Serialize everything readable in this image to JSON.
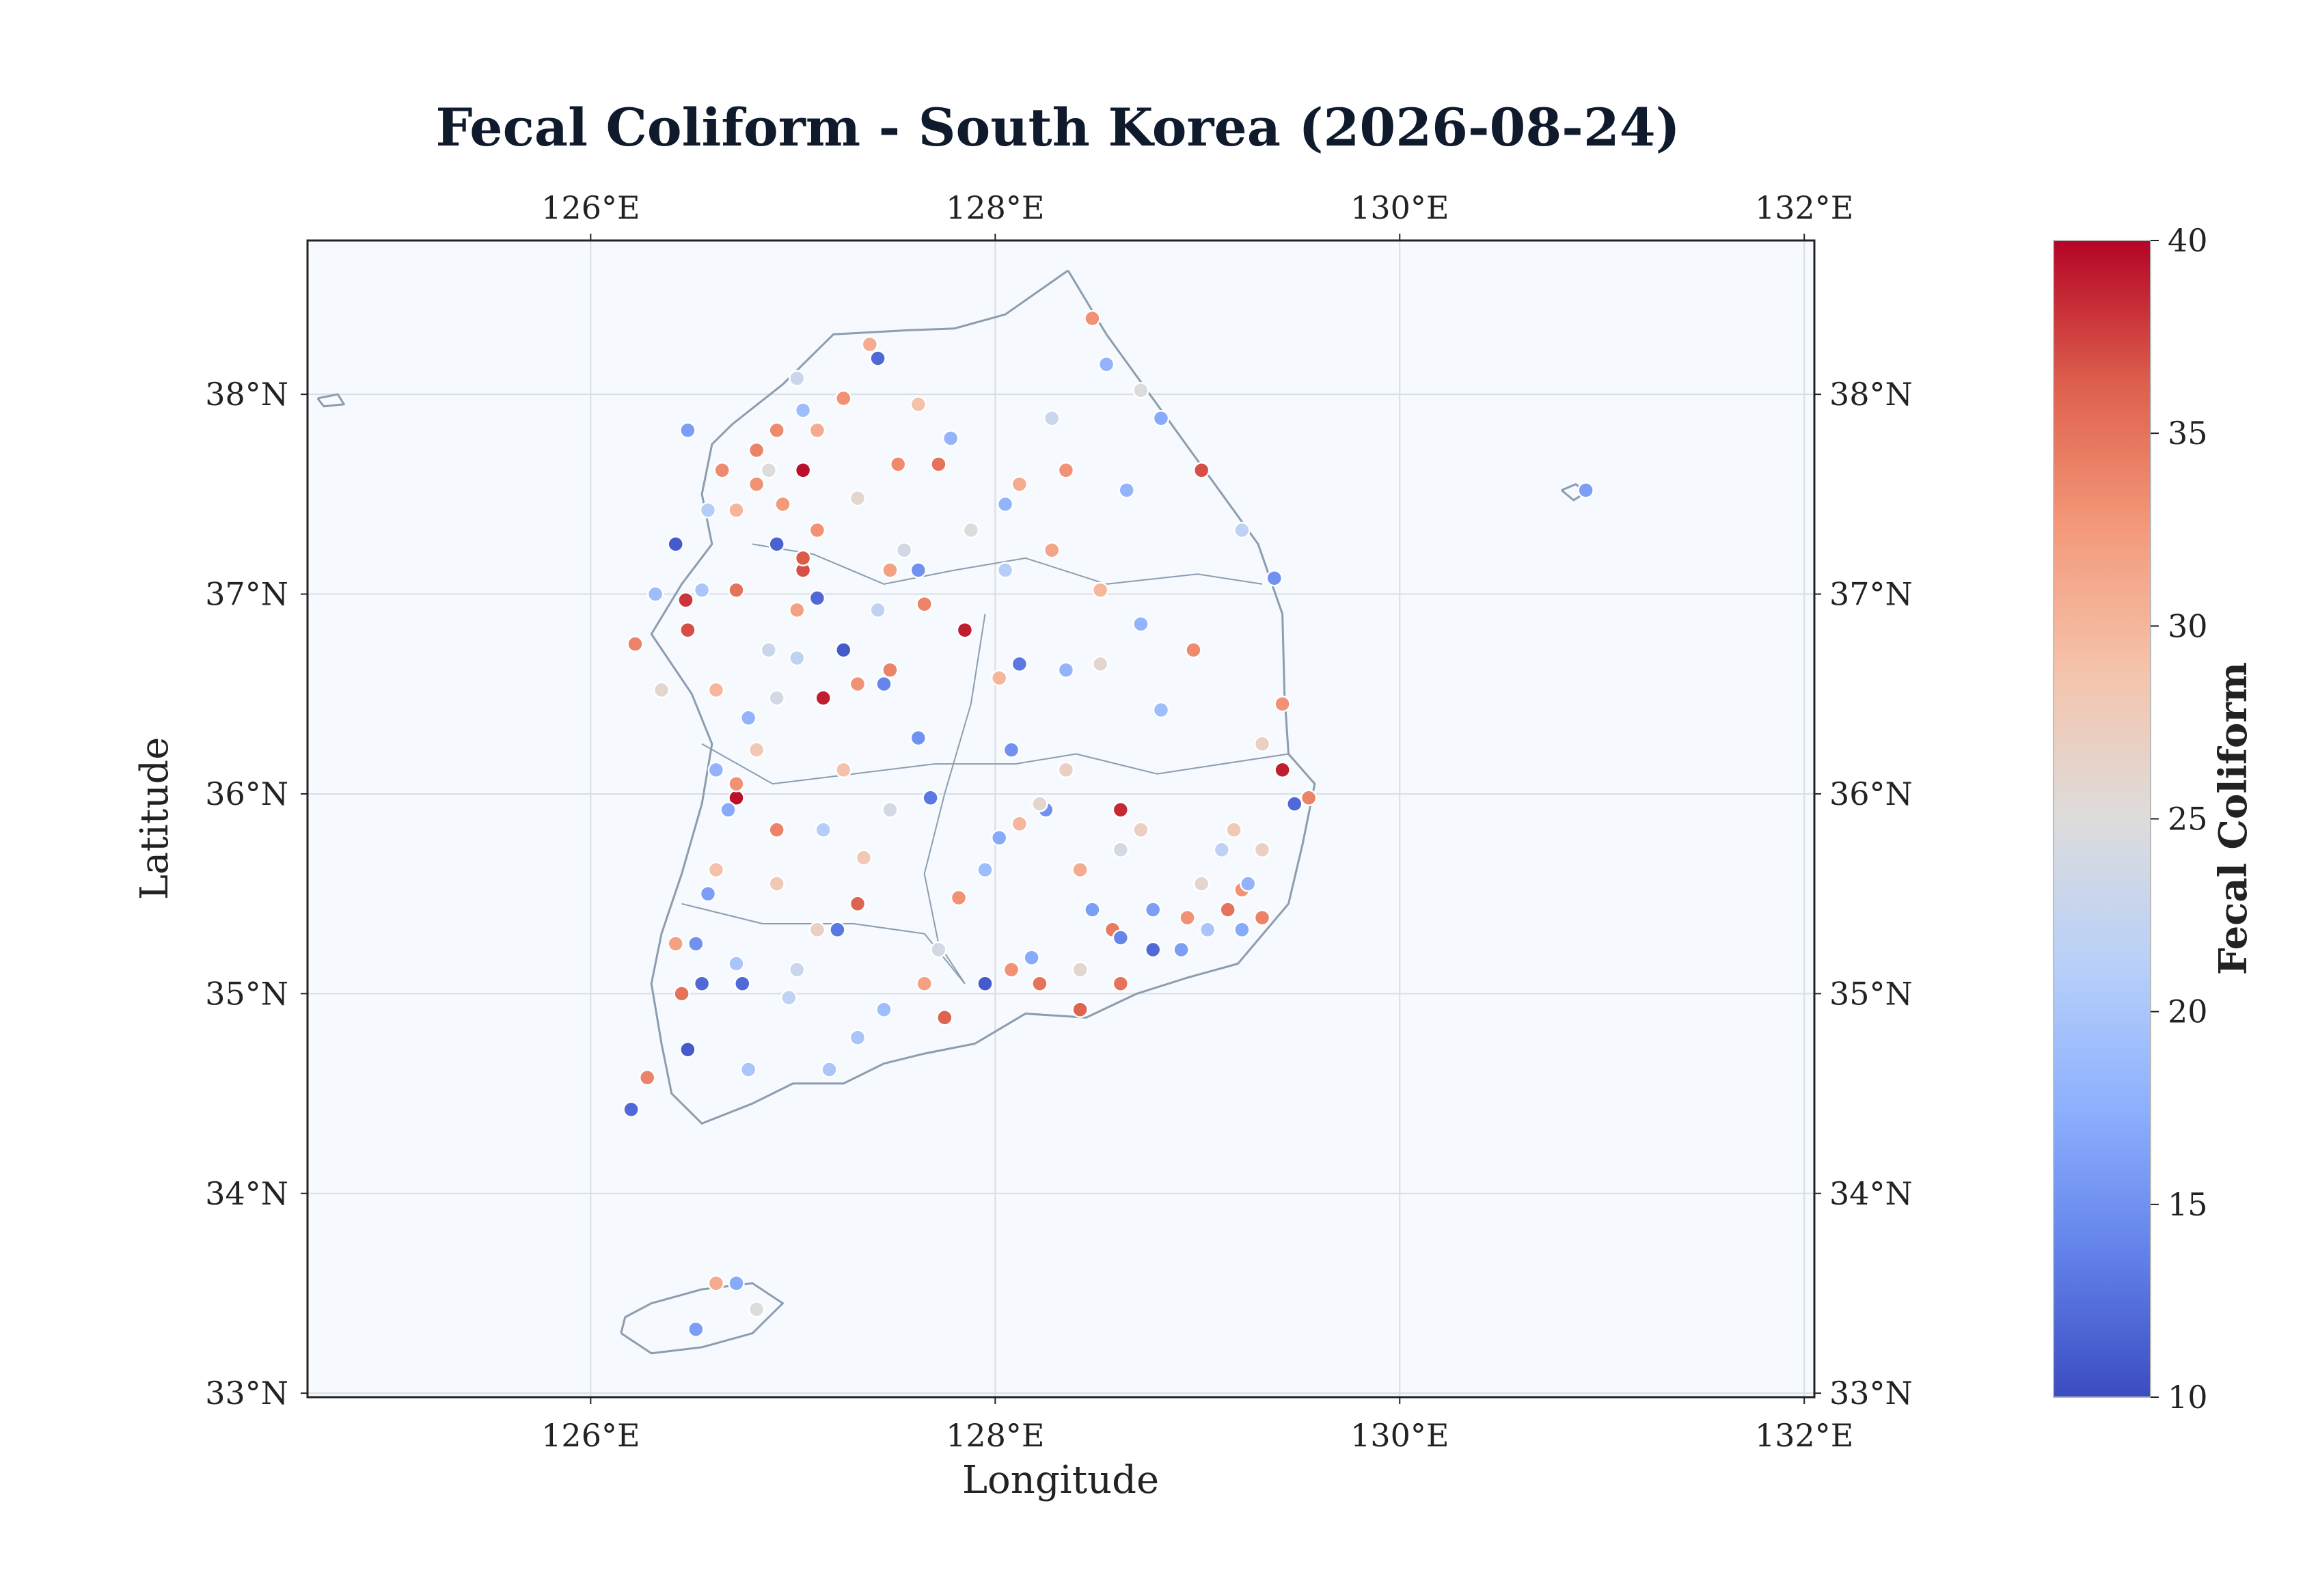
{
  "chart_data": {
    "type": "scatter",
    "title": "Fecal Coliform - South Korea (2026-08-24)",
    "xlabel": "Longitude",
    "ylabel": "Latitude",
    "xlim": [
      124.6,
      132.05
    ],
    "ylim": [
      32.98,
      38.77
    ],
    "x_ticks": [
      126,
      128,
      130,
      132
    ],
    "x_tick_labels": [
      "126°E",
      "128°E",
      "130°E",
      "132°E"
    ],
    "y_ticks": [
      33,
      34,
      35,
      36,
      37,
      38
    ],
    "y_tick_labels": [
      "33°N",
      "34°N",
      "35°N",
      "36°N",
      "37°N",
      "38°N"
    ],
    "grid": true,
    "colorbar": {
      "label": "Fecal Coliform",
      "min": 10,
      "max": 40,
      "ticks": [
        10,
        15,
        20,
        25,
        30,
        35,
        40
      ],
      "tick_labels": [
        "10",
        "15",
        "20",
        "25",
        "30",
        "35",
        "40"
      ],
      "colormap": "coolwarm"
    },
    "points_columns": [
      "lon",
      "lat",
      "value"
    ],
    "points": [
      [
        127.05,
        37.62,
        39.5
      ],
      [
        127.15,
        36.48,
        39.0
      ],
      [
        126.72,
        35.98,
        39.5
      ],
      [
        127.85,
        36.82,
        39.0
      ],
      [
        128.62,
        35.92,
        38.5
      ],
      [
        129.42,
        36.12,
        39.0
      ],
      [
        126.47,
        36.97,
        38.0
      ],
      [
        127.05,
        37.12,
        37.0
      ],
      [
        127.05,
        37.18,
        36.5
      ],
      [
        128.48,
        38.38,
        33.0
      ],
      [
        127.38,
        38.25,
        31.0
      ],
      [
        127.25,
        37.98,
        33.0
      ],
      [
        127.52,
        37.65,
        33.5
      ],
      [
        127.72,
        37.65,
        35.0
      ],
      [
        129.02,
        37.62,
        37.0
      ],
      [
        129.55,
        35.98,
        34.0
      ],
      [
        129.42,
        36.45,
        33.0
      ],
      [
        126.22,
        36.75,
        34.0
      ],
      [
        126.48,
        36.82,
        37.0
      ],
      [
        126.72,
        37.02,
        35.0
      ],
      [
        126.82,
        37.72,
        34.0
      ],
      [
        126.92,
        37.82,
        33.5
      ],
      [
        126.82,
        37.55,
        33.0
      ],
      [
        126.95,
        37.45,
        32.5
      ],
      [
        127.12,
        37.32,
        33.0
      ],
      [
        126.65,
        37.62,
        33.5
      ],
      [
        127.02,
        36.92,
        32.0
      ],
      [
        127.32,
        36.55,
        33.0
      ],
      [
        127.48,
        36.62,
        34.0
      ],
      [
        126.42,
        35.25,
        32.0
      ],
      [
        126.45,
        35.0,
        35.0
      ],
      [
        126.28,
        34.58,
        34.0
      ],
      [
        128.62,
        35.05,
        35.0
      ],
      [
        128.42,
        34.92,
        36.0
      ],
      [
        128.58,
        35.32,
        34.5
      ],
      [
        128.95,
        35.38,
        33.0
      ],
      [
        129.15,
        35.42,
        35.0
      ],
      [
        129.32,
        35.38,
        34.0
      ],
      [
        129.22,
        35.52,
        33.0
      ],
      [
        127.75,
        34.88,
        36.0
      ],
      [
        127.65,
        35.05,
        32.0
      ],
      [
        128.08,
        35.12,
        33.0
      ],
      [
        128.22,
        35.05,
        35.0
      ],
      [
        127.82,
        35.48,
        33.0
      ],
      [
        127.32,
        35.45,
        36.0
      ],
      [
        126.92,
        35.82,
        34.0
      ],
      [
        126.72,
        36.05,
        33.0
      ],
      [
        127.48,
        37.12,
        32.0
      ],
      [
        127.65,
        36.95,
        34.0
      ],
      [
        128.02,
        36.58,
        30.0
      ],
      [
        128.98,
        36.72,
        33.5
      ],
      [
        129.32,
        36.25,
        27.0
      ],
      [
        128.12,
        37.55,
        31.0
      ],
      [
        128.35,
        37.62,
        33.0
      ],
      [
        128.28,
        37.22,
        31.5
      ],
      [
        128.52,
        37.02,
        30.0
      ],
      [
        127.62,
        37.95,
        29.0
      ],
      [
        127.12,
        37.82,
        31.0
      ],
      [
        126.72,
        37.42,
        30.0
      ],
      [
        126.62,
        36.52,
        30.0
      ],
      [
        126.82,
        36.22,
        28.0
      ],
      [
        126.62,
        35.62,
        29.0
      ],
      [
        126.92,
        35.55,
        28.0
      ],
      [
        127.12,
        35.32,
        27.0
      ],
      [
        127.25,
        36.12,
        29.0
      ],
      [
        127.35,
        35.68,
        28.0
      ],
      [
        128.35,
        36.12,
        27.0
      ],
      [
        128.72,
        35.82,
        27.0
      ],
      [
        129.18,
        35.82,
        28.0
      ],
      [
        129.32,
        35.72,
        27.0
      ],
      [
        128.42,
        35.62,
        31.0
      ],
      [
        128.12,
        35.85,
        30.0
      ],
      [
        127.02,
        38.08,
        23.0
      ],
      [
        127.05,
        37.92,
        19.0
      ],
      [
        127.42,
        38.18,
        12.0
      ],
      [
        126.48,
        37.82,
        16.0
      ],
      [
        126.58,
        37.42,
        21.0
      ],
      [
        126.42,
        37.25,
        11.0
      ],
      [
        126.55,
        37.02,
        20.0
      ],
      [
        126.32,
        37.0,
        19.0
      ],
      [
        126.92,
        37.25,
        11.5
      ],
      [
        127.12,
        36.98,
        12.0
      ],
      [
        127.25,
        36.72,
        11.0
      ],
      [
        127.45,
        36.55,
        14.0
      ],
      [
        127.62,
        36.28,
        15.0
      ],
      [
        127.68,
        35.98,
        13.0
      ],
      [
        128.08,
        36.22,
        15.0
      ],
      [
        128.12,
        36.65,
        13.0
      ],
      [
        127.62,
        37.12,
        15.0
      ],
      [
        127.78,
        37.78,
        18.0
      ],
      [
        128.05,
        37.45,
        18.0
      ],
      [
        128.65,
        37.52,
        18.0
      ],
      [
        128.82,
        37.88,
        17.0
      ],
      [
        128.55,
        38.15,
        18.0
      ],
      [
        128.35,
        36.62,
        18.0
      ],
      [
        128.72,
        36.85,
        18.0
      ],
      [
        128.82,
        36.42,
        19.0
      ],
      [
        129.48,
        35.95,
        12.0
      ],
      [
        129.38,
        37.08,
        15.0
      ],
      [
        130.92,
        37.52,
        16.0
      ],
      [
        126.78,
        36.38,
        18.0
      ],
      [
        126.62,
        36.12,
        18.0
      ],
      [
        126.68,
        35.92,
        17.0
      ],
      [
        126.58,
        35.5,
        16.0
      ],
      [
        126.52,
        35.25,
        15.0
      ],
      [
        126.55,
        35.05,
        12.0
      ],
      [
        126.75,
        35.05,
        12.0
      ],
      [
        126.72,
        35.15,
        20.0
      ],
      [
        126.48,
        34.72,
        11.0
      ],
      [
        126.2,
        34.42,
        12.0
      ],
      [
        126.78,
        34.62,
        20.0
      ],
      [
        127.18,
        34.62,
        20.0
      ],
      [
        127.32,
        34.78,
        20.0
      ],
      [
        127.45,
        34.92,
        19.0
      ],
      [
        127.95,
        35.05,
        11.0
      ],
      [
        128.18,
        35.18,
        17.0
      ],
      [
        128.48,
        35.42,
        16.0
      ],
      [
        128.62,
        35.28,
        14.0
      ],
      [
        128.78,
        35.22,
        12.0
      ],
      [
        128.78,
        35.42,
        16.0
      ],
      [
        128.92,
        35.22,
        16.0
      ],
      [
        129.05,
        35.32,
        20.0
      ],
      [
        129.25,
        35.55,
        18.0
      ],
      [
        129.22,
        35.32,
        17.0
      ],
      [
        128.25,
        35.92,
        15.0
      ],
      [
        128.02,
        35.78,
        17.0
      ],
      [
        127.95,
        35.62,
        19.0
      ],
      [
        127.22,
        35.32,
        13.0
      ],
      [
        127.15,
        35.82,
        21.0
      ],
      [
        126.52,
        33.32,
        16.0
      ],
      [
        126.72,
        33.55,
        17.0
      ],
      [
        126.62,
        33.55,
        31.0
      ],
      [
        127.02,
        36.68,
        22.0
      ],
      [
        126.92,
        36.48,
        24.0
      ],
      [
        127.42,
        36.92,
        22.0
      ],
      [
        127.55,
        37.22,
        24.0
      ],
      [
        127.88,
        37.32,
        25.0
      ],
      [
        128.52,
        36.65,
        26.0
      ],
      [
        128.22,
        35.95,
        26.0
      ],
      [
        128.62,
        35.72,
        24.0
      ],
      [
        129.02,
        35.55,
        26.0
      ],
      [
        129.12,
        35.72,
        22.0
      ],
      [
        127.48,
        35.92,
        24.0
      ],
      [
        126.88,
        36.72,
        23.0
      ],
      [
        126.88,
        37.62,
        25.0
      ],
      [
        127.32,
        37.48,
        26.0
      ],
      [
        128.05,
        37.12,
        21.0
      ],
      [
        126.35,
        36.52,
        26.0
      ],
      [
        127.02,
        35.12,
        23.0
      ],
      [
        127.72,
        35.22,
        24.0
      ],
      [
        128.42,
        35.12,
        26.0
      ],
      [
        126.98,
        34.98,
        22.0
      ],
      [
        128.28,
        37.88,
        23.0
      ],
      [
        128.72,
        38.02,
        25.0
      ],
      [
        129.22,
        37.32,
        22.0
      ],
      [
        126.82,
        33.42,
        25.0
      ]
    ]
  }
}
